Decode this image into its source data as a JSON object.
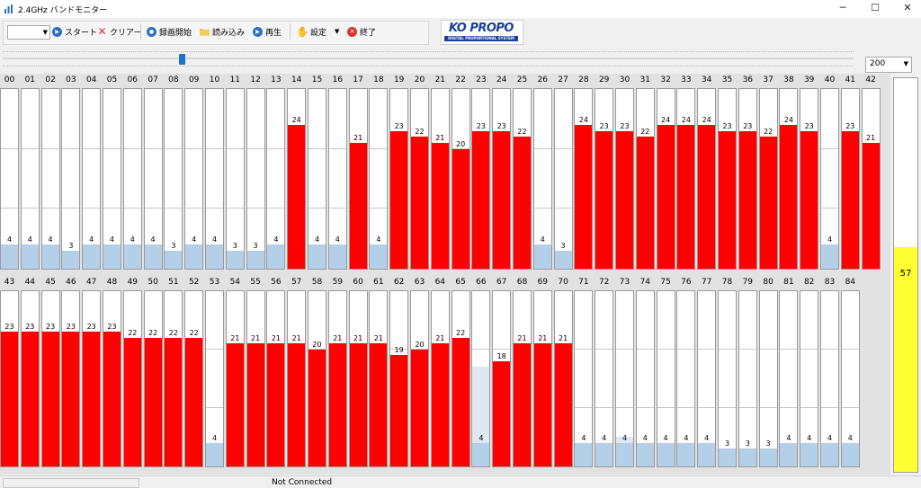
{
  "window": {
    "title": "2.4GHz バンドモニター",
    "minimize": "─",
    "maximize": "☐",
    "close": "✕"
  },
  "toolbar": {
    "start_label": "スタート",
    "clear_label": "クリアー",
    "record_label": "録画開始",
    "load_label": "読み込み",
    "play_label": "再生",
    "settings_label": "設定",
    "exit_label": "終了"
  },
  "logo": {
    "brand": "KO PROPO",
    "tagline": "DIGITAL PROPORTIONAL SYSTEM"
  },
  "range_select": {
    "value": "200"
  },
  "channels_max": 30,
  "channels": [
    {
      "label": "00",
      "value": "4",
      "level": 4
    },
    {
      "label": "01",
      "value": "4",
      "level": 4
    },
    {
      "label": "02",
      "value": "4",
      "level": 4
    },
    {
      "label": "03",
      "value": "3",
      "level": 3
    },
    {
      "label": "04",
      "value": "4",
      "level": 4
    },
    {
      "label": "05",
      "value": "4",
      "level": 4
    },
    {
      "label": "06",
      "value": "4",
      "level": 4
    },
    {
      "label": "07",
      "value": "4",
      "level": 4
    },
    {
      "label": "08",
      "value": "3",
      "level": 3
    },
    {
      "label": "09",
      "value": "4",
      "level": 4
    },
    {
      "label": "10",
      "value": "4",
      "level": 4
    },
    {
      "label": "11",
      "value": "3",
      "level": 3
    },
    {
      "label": "12",
      "value": "3",
      "level": 3
    },
    {
      "label": "13",
      "value": "4",
      "level": 4
    },
    {
      "label": "14",
      "value": "24",
      "level": 24
    },
    {
      "label": "15",
      "value": "4",
      "level": 4
    },
    {
      "label": "16",
      "value": "4",
      "level": 4
    },
    {
      "label": "17",
      "value": "21",
      "level": 21
    },
    {
      "label": "18",
      "value": "4",
      "level": 4
    },
    {
      "label": "19",
      "value": "23",
      "level": 23
    },
    {
      "label": "20",
      "value": "22",
      "level": 22
    },
    {
      "label": "21",
      "value": "21",
      "level": 21
    },
    {
      "label": "22",
      "value": "20",
      "level": 20
    },
    {
      "label": "23",
      "value": "23",
      "level": 23
    },
    {
      "label": "24",
      "value": "23",
      "level": 23
    },
    {
      "label": "25",
      "value": "22",
      "level": 22
    },
    {
      "label": "26",
      "value": "4",
      "level": 4
    },
    {
      "label": "27",
      "value": "3",
      "level": 3
    },
    {
      "label": "28",
      "value": "24",
      "level": 24
    },
    {
      "label": "29",
      "value": "23",
      "level": 23
    },
    {
      "label": "30",
      "value": "23",
      "level": 23
    },
    {
      "label": "31",
      "value": "22",
      "level": 22
    },
    {
      "label": "32",
      "value": "24",
      "level": 24
    },
    {
      "label": "33",
      "value": "24",
      "level": 24
    },
    {
      "label": "34",
      "value": "24",
      "level": 24
    },
    {
      "label": "35",
      "value": "23",
      "level": 23
    },
    {
      "label": "36",
      "value": "23",
      "level": 23
    },
    {
      "label": "37",
      "value": "22",
      "level": 22
    },
    {
      "label": "38",
      "value": "24",
      "level": 24
    },
    {
      "label": "39",
      "value": "23",
      "level": 23
    },
    {
      "label": "40",
      "value": "4",
      "level": 4
    },
    {
      "label": "41",
      "value": "23",
      "level": 23
    },
    {
      "label": "42",
      "value": "21",
      "level": 21
    },
    {
      "label": "43",
      "value": "23",
      "level": 23
    },
    {
      "label": "44",
      "value": "23",
      "level": 23
    },
    {
      "label": "45",
      "value": "23",
      "level": 23
    },
    {
      "label": "46",
      "value": "23",
      "level": 23
    },
    {
      "label": "47",
      "value": "23",
      "level": 23
    },
    {
      "label": "48",
      "value": "23",
      "level": 23
    },
    {
      "label": "49",
      "value": "22",
      "level": 22
    },
    {
      "label": "50",
      "value": "22",
      "level": 22
    },
    {
      "label": "51",
      "value": "22",
      "level": 22
    },
    {
      "label": "52",
      "value": "22",
      "level": 22
    },
    {
      "label": "53",
      "value": "4",
      "level": 4
    },
    {
      "label": "54",
      "value": "21",
      "level": 21
    },
    {
      "label": "55",
      "value": "21",
      "level": 21
    },
    {
      "label": "56",
      "value": "21",
      "level": 21
    },
    {
      "label": "57",
      "value": "21",
      "level": 21
    },
    {
      "label": "58",
      "value": "20",
      "level": 20
    },
    {
      "label": "59",
      "value": "21",
      "level": 21
    },
    {
      "label": "60",
      "value": "21",
      "level": 21
    },
    {
      "label": "61",
      "value": "21",
      "level": 21
    },
    {
      "label": "62",
      "value": "19",
      "level": 19
    },
    {
      "label": "63",
      "value": "20",
      "level": 20
    },
    {
      "label": "64",
      "value": "21",
      "level": 21
    },
    {
      "label": "65",
      "value": "22",
      "level": 22
    },
    {
      "label": "66",
      "value": "4",
      "level": 4,
      "peak": 17
    },
    {
      "label": "67",
      "value": "18",
      "level": 18
    },
    {
      "label": "68",
      "value": "21",
      "level": 21
    },
    {
      "label": "69",
      "value": "21",
      "level": 21
    },
    {
      "label": "70",
      "value": "21",
      "level": 21
    },
    {
      "label": "71",
      "value": "4",
      "level": 4
    },
    {
      "label": "72",
      "value": "4",
      "level": 4
    },
    {
      "label": "73",
      "value": "4",
      "level": 4,
      "peak": 5
    },
    {
      "label": "74",
      "value": "4",
      "level": 4
    },
    {
      "label": "75",
      "value": "4",
      "level": 4
    },
    {
      "label": "76",
      "value": "4",
      "level": 4
    },
    {
      "label": "77",
      "value": "4",
      "level": 4
    },
    {
      "label": "78",
      "value": "3",
      "level": 3
    },
    {
      "label": "79",
      "value": "3",
      "level": 3
    },
    {
      "label": "80",
      "value": "3",
      "level": 3
    },
    {
      "label": "81",
      "value": "4",
      "level": 4
    },
    {
      "label": "82",
      "value": "4",
      "level": 4
    },
    {
      "label": "83",
      "value": "4",
      "level": 4
    },
    {
      "label": "84",
      "value": "4",
      "level": 4
    }
  ],
  "meter": {
    "value": "57",
    "level": 0.57
  },
  "status": {
    "text": "Not Connected"
  },
  "colors": {
    "high": "#ff0000",
    "low": "#b4cfe8",
    "meter": "#ffff33"
  }
}
